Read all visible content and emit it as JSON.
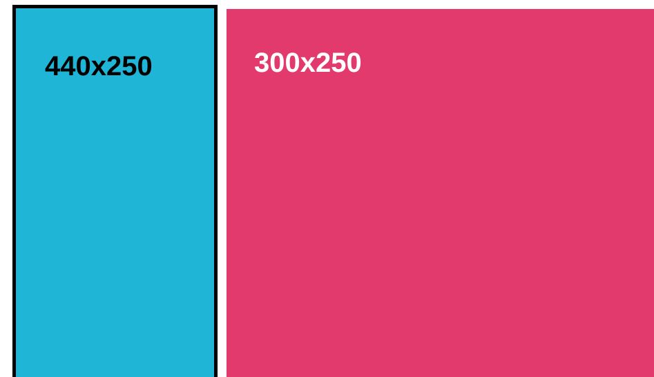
{
  "panels": [
    {
      "label": "440x250"
    },
    {
      "label": "300x250"
    }
  ]
}
